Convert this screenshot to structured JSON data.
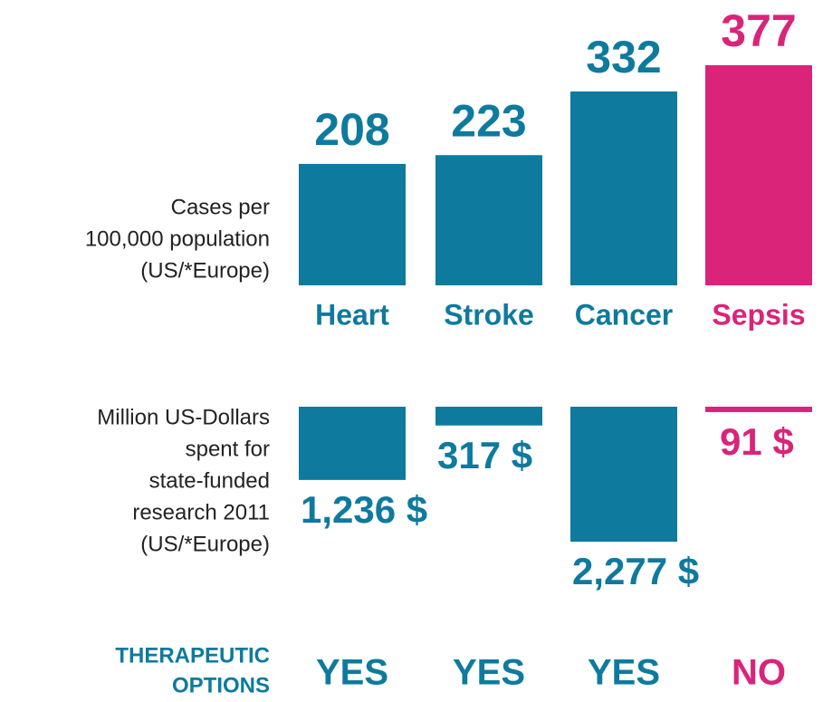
{
  "chart_data": [
    {
      "type": "bar",
      "axis_label": [
        "Cases per",
        "100,000 population",
        "(US/*Europe)"
      ],
      "categories": [
        "Heart",
        "Stroke",
        "Cancer",
        "Sepsis"
      ],
      "values": [
        208,
        223,
        332,
        377
      ],
      "colors": [
        "#0e7a9e",
        "#0e7a9e",
        "#0e7a9e",
        "#d9247a"
      ]
    },
    {
      "type": "hanging-bar",
      "axis_label": [
        "Million US-Dollars",
        "spent for",
        "state-funded",
        "research 2011",
        "(US/*Europe)"
      ],
      "values": [
        1236,
        317,
        2277,
        91
      ],
      "value_labels": [
        "1,236 $",
        "317 $",
        "2,277 $",
        "91 $"
      ],
      "colors": [
        "#0e7a9e",
        "#0e7a9e",
        "#0e7a9e",
        "#d9247a"
      ]
    }
  ],
  "therapeutic_options": {
    "label": [
      "THERAPEUTIC",
      "OPTIONS"
    ],
    "values": [
      "YES",
      "YES",
      "YES",
      "NO"
    ]
  }
}
